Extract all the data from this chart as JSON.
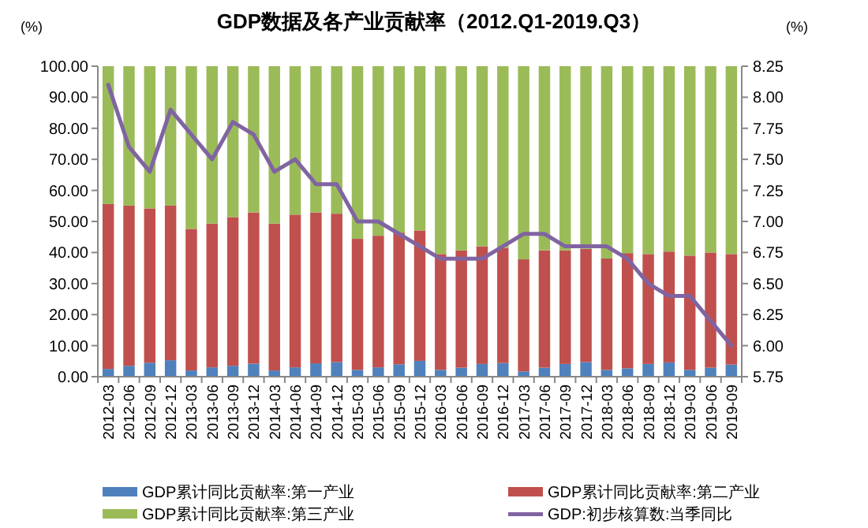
{
  "chart_data": {
    "type": "bar",
    "title": "GDP数据及各产业贡献率（2012.Q1-2019.Q3）",
    "ylabel": "(%)",
    "y2label": "(%)",
    "categories": [
      "2012-03",
      "2012-06",
      "2012-09",
      "2012-12",
      "2013-03",
      "2013-06",
      "2013-09",
      "2013-12",
      "2014-03",
      "2014-06",
      "2014-09",
      "2014-12",
      "2015-03",
      "2015-06",
      "2015-09",
      "2015-12",
      "2016-03",
      "2016-06",
      "2016-09",
      "2016-12",
      "2017-03",
      "2017-06",
      "2017-09",
      "2017-12",
      "2018-03",
      "2018-06",
      "2018-09",
      "2018-12",
      "2019-03",
      "2019-06",
      "2019-09"
    ],
    "stacked": true,
    "legend": "bottom",
    "grid": false,
    "ylim": [
      0,
      100
    ],
    "yticks": [
      {
        "value": 0,
        "label": "0.00"
      },
      {
        "value": 10,
        "label": "10.00"
      },
      {
        "value": 20,
        "label": "20.00"
      },
      {
        "value": 30,
        "label": "30.00"
      },
      {
        "value": 40,
        "label": "40.00"
      },
      {
        "value": 50,
        "label": "50.00"
      },
      {
        "value": 60,
        "label": "60.00"
      },
      {
        "value": 70,
        "label": "70.00"
      },
      {
        "value": 80,
        "label": "80.00"
      },
      {
        "value": 90,
        "label": "90.00"
      },
      {
        "value": 100,
        "label": "100.00"
      }
    ],
    "y2lim": [
      5.75,
      8.25
    ],
    "y2ticks": [
      {
        "value": 5.75,
        "label": "5.75"
      },
      {
        "value": 6,
        "label": "6.00"
      },
      {
        "value": 6.25,
        "label": "6.25"
      },
      {
        "value": 6.5,
        "label": "6.50"
      },
      {
        "value": 6.75,
        "label": "6.75"
      },
      {
        "value": 7,
        "label": "7.00"
      },
      {
        "value": 7.25,
        "label": "7.25"
      },
      {
        "value": 7.5,
        "label": "7.50"
      },
      {
        "value": 7.75,
        "label": "7.75"
      },
      {
        "value": 8,
        "label": "8.00"
      },
      {
        "value": 8.25,
        "label": "8.25"
      }
    ],
    "series": [
      {
        "name": "GDP累计同比贡献率:第一产业",
        "color": "#4f81bd",
        "values": [
          2.5,
          3.5,
          4.5,
          5.3,
          2.0,
          3.0,
          3.5,
          4.2,
          2.0,
          3.0,
          4.3,
          4.7,
          2.2,
          3.0,
          4.0,
          5.1,
          2.2,
          2.9,
          4.1,
          4.4,
          1.7,
          2.9,
          4.1,
          4.7,
          2.2,
          2.7,
          4.1,
          4.6,
          2.2,
          2.9,
          3.9
        ]
      },
      {
        "name": "GDP累计同比贡献率:第二产业",
        "color": "#c0504d",
        "values": [
          53.1,
          51.6,
          49.7,
          49.8,
          45.6,
          46.3,
          47.9,
          48.7,
          47.3,
          49.2,
          48.6,
          47.8,
          42.2,
          42.4,
          42.4,
          42.0,
          37.3,
          37.8,
          37.9,
          37.1,
          36.1,
          37.8,
          36.6,
          36.5,
          35.9,
          37.1,
          35.4,
          35.7,
          36.8,
          37.1,
          35.6
        ]
      },
      {
        "name": "GDP累计同比贡献率:第三产业",
        "color": "#9bbb59",
        "values": [
          44.4,
          44.9,
          45.8,
          44.9,
          52.4,
          50.7,
          48.6,
          47.1,
          50.7,
          47.8,
          47.1,
          47.5,
          55.6,
          54.6,
          53.6,
          52.9,
          60.5,
          59.3,
          58.0,
          58.5,
          62.2,
          59.3,
          59.3,
          58.8,
          61.9,
          60.2,
          60.5,
          59.7,
          61.0,
          60.0,
          60.5
        ]
      },
      {
        "name": "GDP:初步核算数:当季同比",
        "type": "line",
        "axis": "y2",
        "color": "#8064a2",
        "values": [
          8.1,
          7.6,
          7.4,
          7.9,
          7.7,
          7.5,
          7.8,
          7.7,
          7.4,
          7.5,
          7.3,
          7.3,
          7.0,
          7.0,
          6.9,
          6.8,
          6.7,
          6.7,
          6.7,
          6.8,
          6.9,
          6.9,
          6.8,
          6.8,
          6.8,
          6.7,
          6.5,
          6.4,
          6.4,
          6.2,
          6.0
        ]
      }
    ]
  }
}
